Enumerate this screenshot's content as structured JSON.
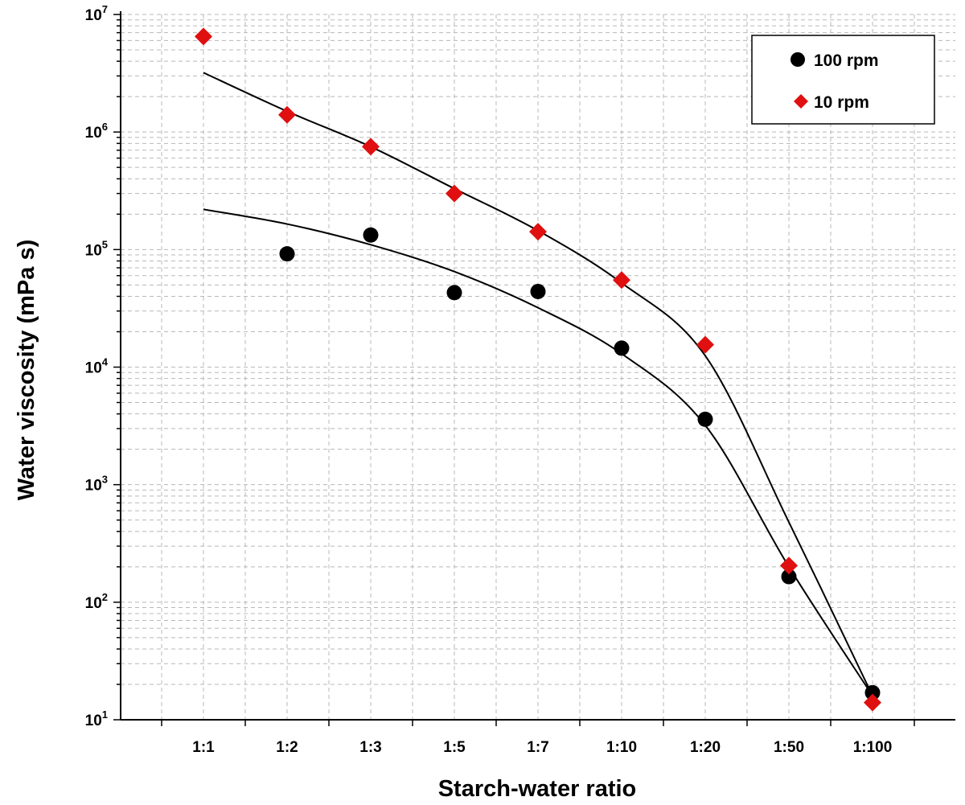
{
  "chart_data": {
    "type": "scatter",
    "xlabel": "Starch-water ratio",
    "ylabel": "Water viscosity (mPa s)",
    "categories": [
      "1:1",
      "1:2",
      "1:3",
      "1:5",
      "1:7",
      "1:10",
      "1:20",
      "1:50",
      "1:100"
    ],
    "y_scale": "log",
    "ylim": [
      10,
      10000000
    ],
    "y_ticks": [
      {
        "value": 10,
        "base": "10",
        "exp": "1"
      },
      {
        "value": 100,
        "base": "10",
        "exp": "2"
      },
      {
        "value": 1000,
        "base": "10",
        "exp": "3"
      },
      {
        "value": 10000,
        "base": "10",
        "exp": "4"
      },
      {
        "value": 100000,
        "base": "10",
        "exp": "5"
      },
      {
        "value": 1000000,
        "base": "10",
        "exp": "6"
      },
      {
        "value": 10000000,
        "base": "10",
        "exp": "7"
      }
    ],
    "grid": true,
    "legend_position": "top-right",
    "series": [
      {
        "name": "100 rpm",
        "marker": "circle",
        "color": "#000000",
        "categories": [
          "1:2",
          "1:3",
          "1:5",
          "1:7",
          "1:10",
          "1:20",
          "1:50",
          "1:100"
        ],
        "values": [
          92000,
          133000,
          43000,
          44000,
          14500,
          3600,
          165,
          17
        ],
        "trend": [
          [
            "1:1",
            220000
          ],
          [
            "1:2",
            165000
          ],
          [
            "1:3",
            110000
          ],
          [
            "1:5",
            65000
          ],
          [
            "1:7",
            32000
          ],
          [
            "1:10",
            13000
          ],
          [
            "1:20",
            3200
          ],
          [
            "1:50",
            200
          ],
          [
            "1:100",
            16
          ]
        ]
      },
      {
        "name": "10 rpm",
        "marker": "diamond",
        "color": "#e01010",
        "categories": [
          "1:1",
          "1:2",
          "1:3",
          "1:5",
          "1:7",
          "1:10",
          "1:20",
          "1:50",
          "1:100"
        ],
        "values": [
          6500000,
          1400000,
          750000,
          300000,
          142000,
          55000,
          15500,
          205,
          14
        ],
        "trend": [
          [
            "1:1",
            3200000
          ],
          [
            "1:2",
            1500000
          ],
          [
            "1:3",
            750000
          ],
          [
            "1:5",
            330000
          ],
          [
            "1:7",
            145000
          ],
          [
            "1:10",
            52000
          ],
          [
            "1:20",
            12500
          ],
          [
            "1:50",
            480
          ],
          [
            "1:100",
            16
          ]
        ]
      }
    ]
  }
}
